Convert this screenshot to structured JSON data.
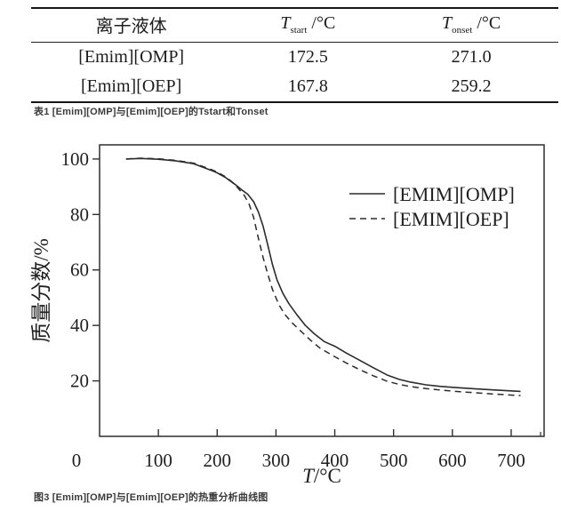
{
  "table": {
    "header": {
      "liquid": "离子液体",
      "t_start": {
        "sym": "T",
        "sub": "start",
        "unit": " /°C"
      },
      "t_onset": {
        "sym": "T",
        "sub": "onset",
        "unit": " /°C"
      }
    },
    "rows": [
      {
        "name": "[Emim][OMP]",
        "t_start": "172.5",
        "t_onset": "271.0"
      },
      {
        "name": "[Emim][OEP]",
        "t_start": "167.8",
        "t_onset": "259.2"
      }
    ]
  },
  "table_caption": "表1 [Emim][OMP]与[Emim][OEP]的Tstart和Tonset",
  "figure_caption": "图3 [Emim][OMP]与[Emim][OEP]的热重分析曲线图",
  "colors": {
    "axis": "#2e2e2e",
    "line": "#2b2b2b",
    "text": "#1f1f1f"
  },
  "chart_data": {
    "type": "line",
    "title": "",
    "xlabel": "T/°C",
    "ylabel": "质量分数/%",
    "xlim": [
      0,
      756
    ],
    "ylim": [
      0,
      105.1
    ],
    "x_ticks": [
      0,
      100,
      200,
      300,
      400,
      500,
      600,
      700
    ],
    "x_minor_ticks": [
      750
    ],
    "y_ticks": [
      20,
      40,
      60,
      80,
      100
    ],
    "grid": false,
    "legend_position": "upper right inside",
    "series": [
      {
        "name": "[EMIM][OMP]",
        "style": "solid",
        "points": [
          [
            45,
            100
          ],
          [
            70,
            100.2
          ],
          [
            100,
            99.9
          ],
          [
            130,
            99.3
          ],
          [
            160,
            98.3
          ],
          [
            190,
            95.9
          ],
          [
            200,
            95.0
          ],
          [
            215,
            93.2
          ],
          [
            230,
            90.9
          ],
          [
            243,
            88.7
          ],
          [
            252,
            87.3
          ],
          [
            262,
            84.6
          ],
          [
            270,
            80.9
          ],
          [
            278,
            75.8
          ],
          [
            286,
            69.0
          ],
          [
            294,
            62.0
          ],
          [
            302,
            56.3
          ],
          [
            312,
            51.5
          ],
          [
            322,
            47.8
          ],
          [
            335,
            44.0
          ],
          [
            350,
            40.0
          ],
          [
            365,
            37.0
          ],
          [
            382,
            34.2
          ],
          [
            400,
            32.5
          ],
          [
            420,
            30.0
          ],
          [
            440,
            27.7
          ],
          [
            465,
            24.8
          ],
          [
            490,
            22.0
          ],
          [
            510,
            20.5
          ],
          [
            530,
            19.5
          ],
          [
            555,
            18.6
          ],
          [
            580,
            18.0
          ],
          [
            605,
            17.6
          ],
          [
            640,
            17.1
          ],
          [
            675,
            16.7
          ],
          [
            716,
            16.2
          ]
        ]
      },
      {
        "name": "[EMIM][OEP]",
        "style": "dashed",
        "points": [
          [
            45,
            100
          ],
          [
            70,
            100.3
          ],
          [
            100,
            100.1
          ],
          [
            130,
            99.5
          ],
          [
            160,
            98.5
          ],
          [
            190,
            96.2
          ],
          [
            200,
            95.3
          ],
          [
            215,
            93.5
          ],
          [
            228,
            91.3
          ],
          [
            238,
            88.9
          ],
          [
            246,
            86.9
          ],
          [
            254,
            83.9
          ],
          [
            262,
            78.9
          ],
          [
            270,
            71.5
          ],
          [
            278,
            64.5
          ],
          [
            286,
            58.5
          ],
          [
            294,
            53.0
          ],
          [
            305,
            47.5
          ],
          [
            315,
            44.0
          ],
          [
            327,
            41.0
          ],
          [
            342,
            38.0
          ],
          [
            358,
            34.8
          ],
          [
            375,
            31.8
          ],
          [
            400,
            28.7
          ],
          [
            420,
            26.4
          ],
          [
            440,
            24.3
          ],
          [
            465,
            21.9
          ],
          [
            490,
            19.8
          ],
          [
            510,
            18.7
          ],
          [
            530,
            17.9
          ],
          [
            555,
            17.2
          ],
          [
            580,
            16.7
          ],
          [
            605,
            16.2
          ],
          [
            640,
            15.7
          ],
          [
            675,
            15.2
          ],
          [
            716,
            14.7
          ]
        ]
      }
    ]
  }
}
